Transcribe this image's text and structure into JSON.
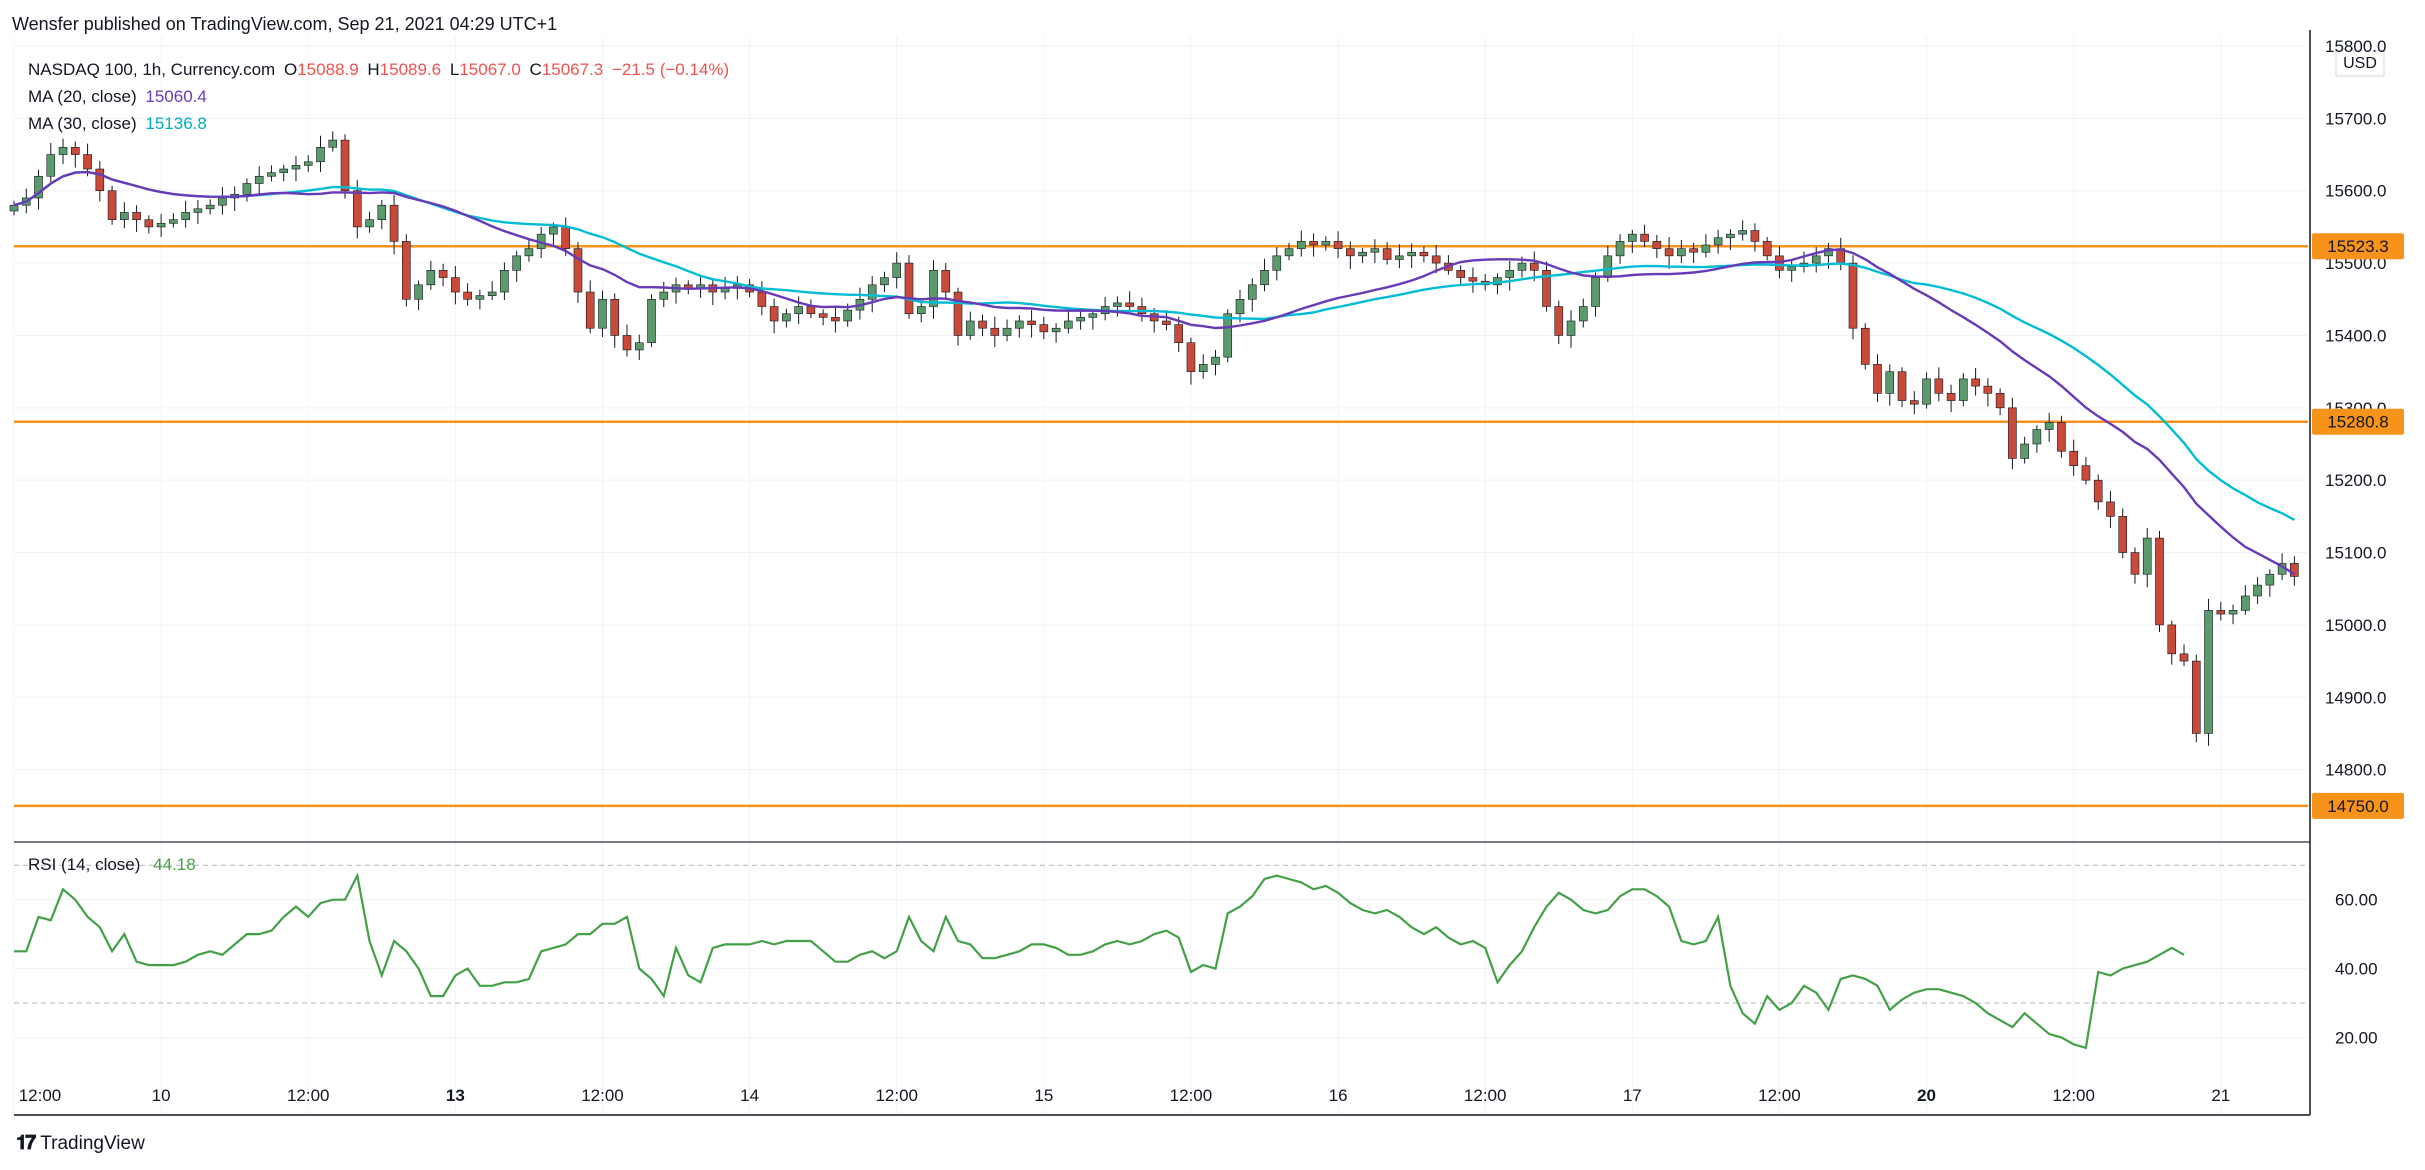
{
  "publish_line": "Wensfer published on TradingView.com, Sep 21, 2021 04:29 UTC+1",
  "legend": {
    "symbol": "NASDAQ 100, 1h, Currency.com",
    "o_label": "O",
    "o": "15088.9",
    "h_label": "H",
    "h": "15089.6",
    "l_label": "L",
    "l": "15067.0",
    "c_label": "C",
    "c": "15067.3",
    "change": "−21.5 (−0.14%)",
    "ma20_label": "MA (20, close)",
    "ma20_value": "15060.4",
    "ma30_label": "MA (30, close)",
    "ma30_value": "15136.8"
  },
  "rsi_legend": {
    "label": "RSI (14, close)",
    "value": "44.18"
  },
  "footer": {
    "brand": "TradingView",
    "logo_glyph": "𝟏𝟕"
  },
  "colors": {
    "up": "#26a69a",
    "up_candle": "#5b9a6b",
    "down": "#ef5350",
    "down_candle": "#c94a38",
    "ma20": "#673ab7",
    "ma30": "#00bcd4",
    "level": "#f7931a",
    "rsi": "#43a047",
    "grid": "#f0f3fa"
  },
  "chart_data": [
    {
      "type": "candlestick",
      "title": "NASDAQ 100, 1h, Currency.com",
      "currency": "USD",
      "ylim": [
        14700,
        15800
      ],
      "y_ticks": [
        "14800.0",
        "14900.0",
        "15000.0",
        "15100.0",
        "15200.0",
        "15300.0",
        "15400.0",
        "15500.0",
        "15600.0",
        "15700.0",
        "15800.0"
      ],
      "x_ticks": [
        {
          "label": "12:00",
          "i": 0
        },
        {
          "label": "10",
          "i": 12
        },
        {
          "label": "12:00",
          "i": 24
        },
        {
          "label": "13",
          "i": 36
        },
        {
          "label": "12:00",
          "i": 48
        },
        {
          "label": "14",
          "i": 60
        },
        {
          "label": "12:00",
          "i": 72
        },
        {
          "label": "15",
          "i": 84
        },
        {
          "label": "12:00",
          "i": 96
        },
        {
          "label": "16",
          "i": 108
        },
        {
          "label": "12:00",
          "i": 120
        },
        {
          "label": "17",
          "i": 132
        },
        {
          "label": "12:00",
          "i": 144
        },
        {
          "label": "20",
          "i": 156
        },
        {
          "label": "12:00",
          "i": 168
        },
        {
          "label": "21",
          "i": 180
        }
      ],
      "levels": [
        15523.3,
        15280.8,
        14750.0
      ],
      "level_labels": [
        "15523.3",
        "15280.8",
        "14750.0"
      ],
      "close": [
        15580,
        15590,
        15620,
        15650,
        15660,
        15650,
        15630,
        15600,
        15560,
        15570,
        15560,
        15550,
        15555,
        15560,
        15570,
        15575,
        15580,
        15590,
        15595,
        15610,
        15620,
        15625,
        15630,
        15635,
        15640,
        15660,
        15670,
        15600,
        15550,
        15560,
        15580,
        15530,
        15450,
        15470,
        15490,
        15480,
        15460,
        15450,
        15455,
        15460,
        15490,
        15510,
        15520,
        15540,
        15550,
        15520,
        15460,
        15410,
        15450,
        15400,
        15380,
        15390,
        15450,
        15460,
        15470,
        15465,
        15470,
        15460,
        15465,
        15470,
        15460,
        15440,
        15420,
        15430,
        15440,
        15430,
        15425,
        15420,
        15435,
        15450,
        15470,
        15480,
        15500,
        15430,
        15440,
        15490,
        15460,
        15400,
        15420,
        15410,
        15400,
        15410,
        15420,
        15415,
        15405,
        15410,
        15420,
        15425,
        15430,
        15440,
        15445,
        15440,
        15430,
        15420,
        15415,
        15390,
        15350,
        15360,
        15370,
        15430,
        15450,
        15470,
        15490,
        15510,
        15520,
        15530,
        15525,
        15530,
        15520,
        15510,
        15515,
        15520,
        15505,
        15510,
        15515,
        15510,
        15500,
        15490,
        15480,
        15475,
        15470,
        15480,
        15490,
        15500,
        15490,
        15440,
        15400,
        15420,
        15440,
        15480,
        15510,
        15530,
        15540,
        15530,
        15520,
        15510,
        15520,
        15515,
        15525,
        15535,
        15540,
        15545,
        15530,
        15510,
        15490,
        15495,
        15500,
        15510,
        15520,
        15500,
        15410,
        15360,
        15320,
        15350,
        15310,
        15305,
        15340,
        15320,
        15310,
        15340,
        15330,
        15320,
        15300,
        15230,
        15250,
        15270,
        15280,
        15240,
        15220,
        15200,
        15170,
        15150,
        15100,
        15070,
        15120,
        15000,
        14960,
        14950,
        14850,
        15020,
        15015,
        15020,
        15040,
        15055,
        15070,
        15085,
        15067
      ]
    },
    {
      "type": "line",
      "title": "RSI (14, close)",
      "ylim": [
        12,
        75
      ],
      "y_ticks": [
        "20.00",
        "40.00",
        "60.00"
      ],
      "bands": [
        30,
        70
      ],
      "values": [
        45,
        45,
        55,
        54,
        63,
        60,
        55,
        52,
        45,
        50,
        42,
        41,
        41,
        41,
        42,
        44,
        45,
        44,
        47,
        50,
        50,
        51,
        55,
        58,
        55,
        59,
        60,
        60,
        67,
        48,
        38,
        48,
        45,
        40,
        32,
        32,
        38,
        40,
        35,
        35,
        36,
        36,
        37,
        45,
        46,
        47,
        50,
        50,
        53,
        53,
        55,
        40,
        37,
        32,
        46,
        38,
        36,
        46,
        47,
        47,
        47,
        48,
        47,
        48,
        48,
        48,
        45,
        42,
        42,
        44,
        45,
        43,
        45,
        55,
        48,
        45,
        55,
        48,
        47,
        43,
        43,
        44,
        45,
        47,
        47,
        46,
        44,
        44,
        45,
        47,
        48,
        47,
        48,
        50,
        51,
        49,
        39,
        41,
        40,
        56,
        58,
        61,
        66,
        67,
        66,
        65,
        63,
        64,
        62,
        59,
        57,
        56,
        57,
        55,
        52,
        50,
        52,
        49,
        47,
        48,
        46,
        36,
        41,
        45,
        52,
        58,
        62,
        60,
        57,
        56,
        57,
        61,
        63,
        63,
        61,
        58,
        48,
        47,
        48,
        55,
        35,
        27,
        24,
        32,
        28,
        30,
        35,
        33,
        28,
        37,
        38,
        37,
        35,
        28,
        31,
        33,
        34,
        34,
        33,
        32,
        30,
        27,
        25,
        23,
        27,
        24,
        21,
        20,
        18,
        17,
        39,
        38,
        40,
        41,
        42,
        44,
        46,
        44
      ]
    }
  ]
}
